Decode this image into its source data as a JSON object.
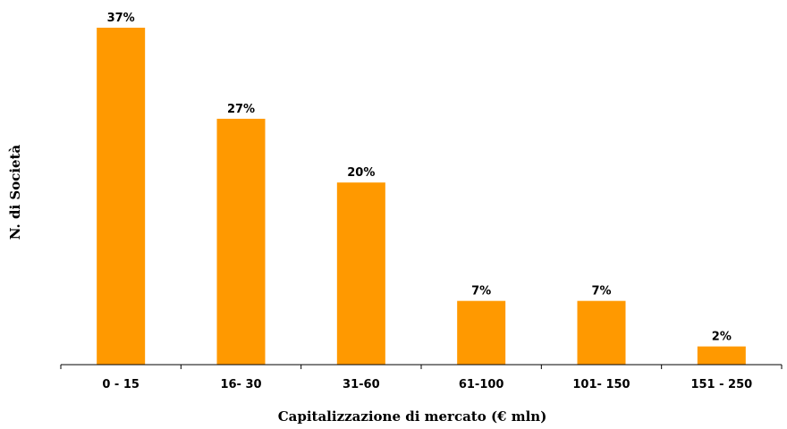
{
  "chart_data": {
    "type": "bar",
    "title": "",
    "xlabel": "Capitalizzazione di mercato (€ mln)",
    "ylabel": "N. di Società",
    "categories": [
      "0 - 15",
      "16- 30",
      "31-60",
      "61-100",
      "101- 150",
      "151 - 250"
    ],
    "values": [
      37,
      27,
      20,
      7,
      7,
      2
    ],
    "data_labels": [
      "37%",
      "27%",
      "20%",
      "7%",
      "7%",
      "2%"
    ],
    "value_unit": "%",
    "ylim": [
      0,
      37
    ],
    "grid": false,
    "legend": "none",
    "bar_color": "#FF9900",
    "axis_color": "#000000"
  }
}
